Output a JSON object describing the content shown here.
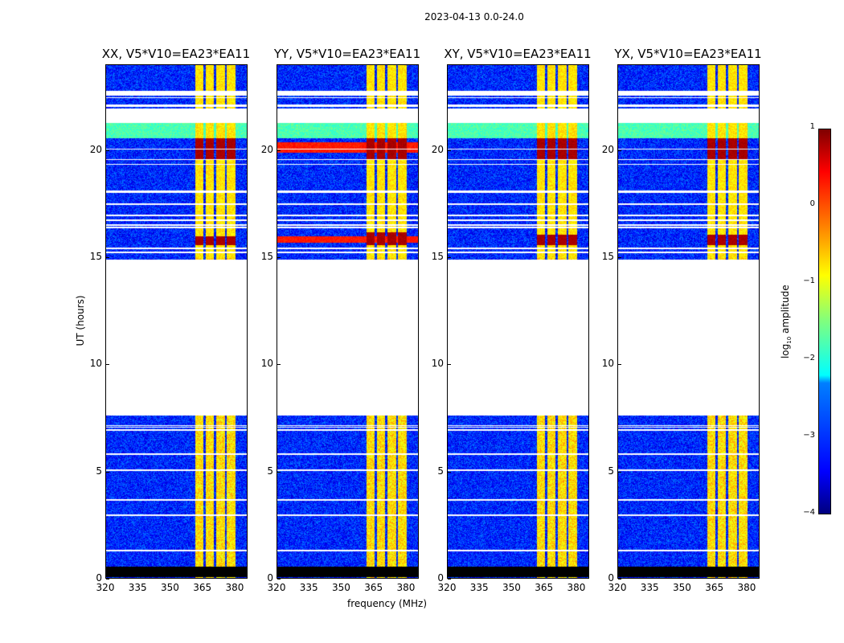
{
  "chart_data": {
    "type": "heatmap",
    "title": "2023-04-13 0.0-24.0",
    "xlabel": "frequency (MHz)",
    "ylabel": "UT (hours)",
    "xlim": [
      320,
      386
    ],
    "ylim": [
      0,
      24
    ],
    "xticks": [
      320,
      335,
      350,
      365,
      380
    ],
    "yticks": [
      0,
      5,
      10,
      15,
      20
    ],
    "panels": [
      {
        "title": "XX, V5*V10=EA23*EA11",
        "strong_rows": [
          [
            19.6,
            20.6
          ],
          [
            15.6,
            16.0
          ]
        ],
        "baseline_band": null
      },
      {
        "title": "YY, V5*V10=EA23*EA11",
        "strong_rows": [
          [
            19.6,
            20.6
          ],
          [
            15.6,
            16.2
          ]
        ],
        "baseline_band": [
          [
            19.9,
            20.4
          ],
          [
            15.7,
            16.0
          ]
        ]
      },
      {
        "title": "XY, V5*V10=EA23*EA11",
        "strong_rows": [
          [
            19.6,
            20.6
          ],
          [
            15.6,
            16.1
          ]
        ],
        "baseline_band": null
      },
      {
        "title": "YX, V5*V10=EA23*EA11",
        "strong_rows": [
          [
            19.6,
            20.6
          ],
          [
            15.6,
            16.1
          ]
        ],
        "baseline_band": null
      }
    ],
    "blank_time_ranges": [
      [
        7.6,
        14.9
      ],
      [
        21.3,
        22.0
      ],
      [
        22.6,
        22.8
      ]
    ],
    "flagged_time_ranges": [
      [
        0.05,
        0.55
      ]
    ],
    "rfi_channels_mhz": [
      [
        361.5,
        365.5
      ],
      [
        366.5,
        370.5
      ],
      [
        371.5,
        375.5
      ],
      [
        376.5,
        380.5
      ]
    ],
    "background_log10": -3.2,
    "rfi_log10": -0.8,
    "colorbar": {
      "label": "log10 amplitude",
      "label_base": "log",
      "label_sub": "10",
      "label_rest": " amplitude",
      "range": [
        -4,
        1
      ],
      "ticks": [
        "1",
        "0",
        "−1",
        "−2",
        "−3",
        "−4"
      ],
      "colormap": "jet"
    }
  }
}
